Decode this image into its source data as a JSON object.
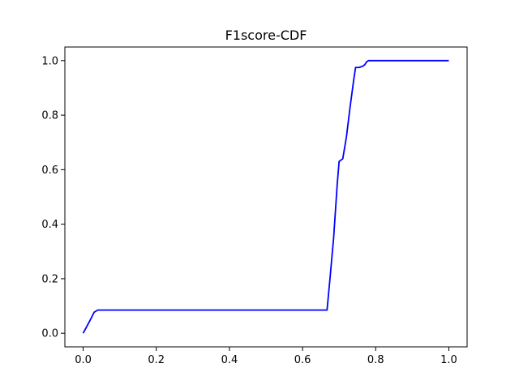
{
  "chart_data": {
    "type": "line",
    "title": "F1score-CDF",
    "xlabel": "",
    "ylabel": "",
    "xlim": [
      -0.05,
      1.05
    ],
    "ylim": [
      -0.05,
      1.05
    ],
    "x_ticks": [
      0.0,
      0.2,
      0.4,
      0.6,
      0.8,
      1.0
    ],
    "x_tick_labels": [
      "0.0",
      "0.2",
      "0.4",
      "0.6",
      "0.8",
      "1.0"
    ],
    "y_ticks": [
      0.0,
      0.2,
      0.4,
      0.6,
      0.8,
      1.0
    ],
    "y_tick_labels": [
      "0.0",
      "0.2",
      "0.4",
      "0.6",
      "0.8",
      "1.0"
    ],
    "grid": false,
    "legend": "none",
    "series": [
      {
        "color": "#0000ff",
        "x": [
          0.0,
          0.01,
          0.02,
          0.03,
          0.04,
          0.05,
          0.1,
          0.2,
          0.3,
          0.4,
          0.5,
          0.6,
          0.667,
          0.675,
          0.685,
          0.695,
          0.7,
          0.705,
          0.71,
          0.715,
          0.72,
          0.73,
          0.74,
          0.745,
          0.755,
          0.765,
          0.77,
          0.775,
          0.78,
          0.8,
          0.9,
          1.0
        ],
        "y": [
          0.0,
          0.025,
          0.05,
          0.077,
          0.085,
          0.085,
          0.085,
          0.085,
          0.085,
          0.085,
          0.085,
          0.085,
          0.085,
          0.2,
          0.35,
          0.55,
          0.63,
          0.635,
          0.64,
          0.68,
          0.72,
          0.83,
          0.93,
          0.975,
          0.975,
          0.98,
          0.985,
          0.995,
          1.0,
          1.0,
          1.0,
          1.0
        ]
      }
    ]
  }
}
